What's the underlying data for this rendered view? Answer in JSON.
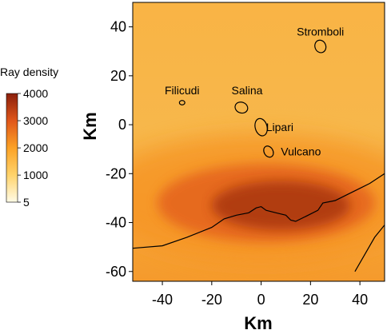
{
  "chart_data": {
    "type": "heatmap",
    "title": "",
    "xlabel": "Km",
    "ylabel": "Km",
    "xlim": [
      -52,
      50
    ],
    "ylim": [
      -64,
      50
    ],
    "xticks": [
      -40,
      -20,
      0,
      20,
      40
    ],
    "yticks": [
      40,
      20,
      0,
      -20,
      -40,
      -60
    ],
    "grid": false,
    "colorbar": {
      "title": "Ray density",
      "min": 5,
      "max": 4000,
      "ticks": [
        4000,
        3000,
        2000,
        1000,
        5
      ],
      "colors": [
        "#fffbe6",
        "#ffd36b",
        "#fba226",
        "#e0561a",
        "#8a1f0c"
      ]
    },
    "density_zones": [
      {
        "x": 8,
        "y": -33,
        "rx": 28,
        "ry": 10,
        "value": 3700
      },
      {
        "x": 2,
        "y": -32,
        "rx": 44,
        "ry": 16,
        "value": 2900
      },
      {
        "x": 0,
        "y": -30,
        "rx": 66,
        "ry": 26,
        "value": 2200
      }
    ],
    "islands": [
      {
        "name": "Stromboli",
        "x": 24,
        "y": 32
      },
      {
        "name": "Filicudi",
        "x": -32,
        "y": 9
      },
      {
        "name": "Salina",
        "x": -8,
        "y": 7
      },
      {
        "name": "Lipari",
        "x": 0,
        "y": -1
      },
      {
        "name": "Vulcano",
        "x": 3,
        "y": -11
      }
    ],
    "coastlines": [
      {
        "name": "",
        "points": [
          [
            -52,
            -50.5
          ],
          [
            -40,
            -49.5
          ],
          [
            -30,
            -46
          ],
          [
            -20,
            -42
          ],
          [
            -15,
            -38.5
          ],
          [
            -10,
            -37
          ],
          [
            -5,
            -36
          ],
          [
            -2,
            -34
          ],
          [
            0,
            -33.5
          ],
          [
            2,
            -35
          ],
          [
            6,
            -36
          ],
          [
            10,
            -37
          ],
          [
            12,
            -39
          ],
          [
            14,
            -39.5
          ],
          [
            18,
            -37.5
          ],
          [
            23,
            -35
          ],
          [
            25,
            -32
          ],
          [
            30,
            -31
          ],
          [
            35,
            -28.5
          ],
          [
            40,
            -26
          ],
          [
            44,
            -24
          ],
          [
            50,
            -20
          ]
        ]
      },
      {
        "name": "",
        "points": [
          [
            38,
            -60
          ],
          [
            42,
            -53
          ],
          [
            46,
            -46
          ],
          [
            50,
            -41
          ]
        ]
      }
    ]
  }
}
